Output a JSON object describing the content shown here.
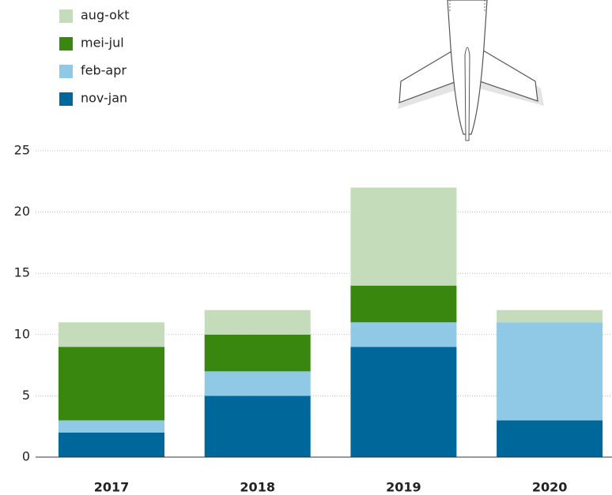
{
  "chart_data": {
    "type": "stacked_bar",
    "categories": [
      "2017",
      "2018",
      "2019",
      "2020"
    ],
    "series": [
      {
        "name": "nov-jan",
        "color": "#00679a",
        "values": [
          2,
          5,
          9,
          3
        ]
      },
      {
        "name": "feb-apr",
        "color": "#8fc9e6",
        "values": [
          1,
          2,
          2,
          8
        ]
      },
      {
        "name": "mei-jul",
        "color": "#3a870f",
        "values": [
          6,
          3,
          3,
          0
        ]
      },
      {
        "name": "aug-okt",
        "color": "#c4dcb9",
        "values": [
          2,
          2,
          8,
          1
        ]
      }
    ],
    "ylim": [
      0,
      25
    ],
    "yticks": [
      0,
      5,
      10,
      15,
      20,
      25
    ],
    "grid": true,
    "legend": "top-left"
  }
}
